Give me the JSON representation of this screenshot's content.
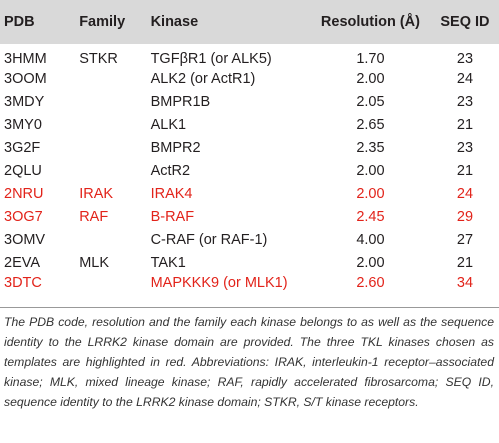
{
  "table": {
    "headers": [
      "PDB",
      "Family",
      "Kinase",
      "Resolution (Å)",
      "SEQ ID"
    ],
    "rows": [
      {
        "pdb": "3HMM",
        "family": "STKR",
        "kinase": "TGFβR1 (or ALK5)",
        "resolution": "1.70",
        "seq_id": "23",
        "highlighted": false
      },
      {
        "pdb": "3OOM",
        "family": "",
        "kinase": "ALK2 (or ActR1)",
        "resolution": "2.00",
        "seq_id": "24",
        "highlighted": false
      },
      {
        "pdb": "3MDY",
        "family": "",
        "kinase": "BMPR1B",
        "resolution": "2.05",
        "seq_id": "23",
        "highlighted": false
      },
      {
        "pdb": "3MY0",
        "family": "",
        "kinase": "ALK1",
        "resolution": "2.65",
        "seq_id": "21",
        "highlighted": false
      },
      {
        "pdb": "3G2F",
        "family": "",
        "kinase": "BMPR2",
        "resolution": "2.35",
        "seq_id": "23",
        "highlighted": false
      },
      {
        "pdb": "2QLU",
        "family": "",
        "kinase": "ActR2",
        "resolution": "2.00",
        "seq_id": "21",
        "highlighted": false
      },
      {
        "pdb": "2NRU",
        "family": "IRAK",
        "kinase": "IRAK4",
        "resolution": "2.00",
        "seq_id": "24",
        "highlighted": true
      },
      {
        "pdb": "3OG7",
        "family": "RAF",
        "kinase": "B-RAF",
        "resolution": "2.45",
        "seq_id": "29",
        "highlighted": true
      },
      {
        "pdb": "3OMV",
        "family": "",
        "kinase": "C-RAF (or RAF-1)",
        "resolution": "4.00",
        "seq_id": "27",
        "highlighted": false
      },
      {
        "pdb": "2EVA",
        "family": "MLK",
        "kinase": "TAK1",
        "resolution": "2.00",
        "seq_id": "21",
        "highlighted": false
      },
      {
        "pdb": "3DTC",
        "family": "",
        "kinase": "MAPKKK9 (or MLK1)",
        "resolution": "2.60",
        "seq_id": "34",
        "highlighted": true
      }
    ]
  },
  "colors": {
    "header_bg": "#d9d9d9",
    "highlight": "#e2231a",
    "text": "#231f20"
  },
  "caption": "The PDB code, resolution and the family each kinase belongs to as well as the sequence identity to the LRRK2 kinase domain are provided. The three TKL kinases chosen as templates are highlighted in red. Abbreviations: IRAK, interleukin-1 receptor–associated kinase; MLK, mixed lineage kinase; RAF, rapidly accelerated fibrosarcoma; SEQ ID, sequence identity to the LRRK2 kinase domain; STKR, S/T kinase receptors."
}
